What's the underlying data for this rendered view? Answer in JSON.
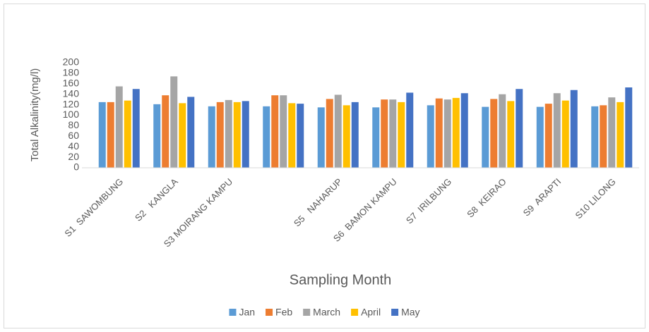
{
  "chart_data": {
    "type": "bar",
    "x_label": "Sampling Month",
    "y_label": "Total Alkalinity(mg/l)",
    "categories": [
      "S1  SAWOMBUNG",
      "S2   KANGLA",
      "S3 MOIRANG KAMPU",
      null,
      "S5   NAHARUP",
      "S6  BAMON KAMPU",
      "S7  IRILBUNG",
      "S8  KEIRAO",
      "S9  ARAPTI",
      "S10 LILONG"
    ],
    "series": [
      {
        "name": "Jan",
        "color": "#5b9bd5",
        "values": [
          125,
          121,
          117,
          117,
          115,
          115,
          119,
          116,
          116,
          117
        ]
      },
      {
        "name": "Feb",
        "color": "#ed7d31",
        "values": [
          125,
          138,
          125,
          138,
          131,
          130,
          132,
          131,
          122,
          119
        ]
      },
      {
        "name": "March",
        "color": "#a5a5a5",
        "values": [
          155,
          174,
          129,
          138,
          139,
          130,
          130,
          140,
          142,
          134
        ]
      },
      {
        "name": "April",
        "color": "#ffc000",
        "values": [
          128,
          123,
          125,
          123,
          119,
          125,
          133,
          127,
          128,
          125
        ]
      },
      {
        "name": "May",
        "color": "#4472c4",
        "values": [
          150,
          135,
          127,
          122,
          125,
          143,
          142,
          150,
          148,
          153
        ]
      }
    ],
    "ylim": [
      0,
      200
    ],
    "yticks": [
      0,
      20,
      40,
      60,
      80,
      100,
      120,
      140,
      160,
      180,
      200
    ],
    "grid": false,
    "legend": "bottom"
  }
}
